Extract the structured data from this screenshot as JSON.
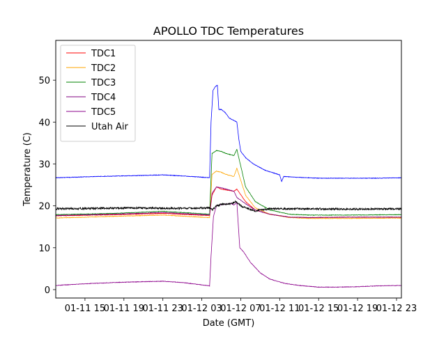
{
  "chart_data": {
    "type": "line",
    "title": "APOLLO TDC Temperatures",
    "xlabel": "Date (GMT)",
    "ylabel": "Temperature (C)",
    "x_unit": "hours since 01-11 12:00 GMT",
    "xlim": [
      0,
      35.5
    ],
    "ylim": [
      -2,
      59.5
    ],
    "xticks": [
      {
        "value": 3,
        "label": "01-11 15"
      },
      {
        "value": 7,
        "label": "01-11 19"
      },
      {
        "value": 11,
        "label": "01-11 23"
      },
      {
        "value": 15,
        "label": "01-12 03"
      },
      {
        "value": 19,
        "label": "01-12 07"
      },
      {
        "value": 23,
        "label": "01-12 11"
      },
      {
        "value": 27,
        "label": "01-12 15"
      },
      {
        "value": 31,
        "label": "01-12 19"
      },
      {
        "value": 35,
        "label": "01-12 23"
      }
    ],
    "yticks": [
      {
        "value": 0,
        "label": "0"
      },
      {
        "value": 10,
        "label": "10"
      },
      {
        "value": 20,
        "label": "20"
      },
      {
        "value": 30,
        "label": "30"
      },
      {
        "value": 40,
        "label": "40"
      },
      {
        "value": 50,
        "label": "50"
      }
    ],
    "legend_position": "top-left",
    "series": [
      {
        "name": "TDC1",
        "color": "#ff0000",
        "x": [
          0,
          6,
          11,
          15.8,
          16.05,
          16.5,
          17.0,
          17.5,
          18.3,
          18.6,
          19.5,
          20.5,
          22,
          24,
          26,
          30,
          35.5
        ],
        "y": [
          17.6,
          17.9,
          18.2,
          17.7,
          22.5,
          24.5,
          24.0,
          23.8,
          23.5,
          24.0,
          21.0,
          19.0,
          18.0,
          17.3,
          17.2,
          17.3,
          17.3
        ]
      },
      {
        "name": "TDC2",
        "color": "#ffa500",
        "x": [
          0,
          6,
          11,
          15.8,
          16.05,
          16.5,
          17.0,
          17.5,
          18.3,
          18.6,
          19.5,
          20.5,
          22,
          24,
          26,
          30,
          35.5
        ],
        "y": [
          17.1,
          17.5,
          17.8,
          17.2,
          27.5,
          28.3,
          28.0,
          27.5,
          27.0,
          29.0,
          22.5,
          19.5,
          18.0,
          17.2,
          17.0,
          17.0,
          17.1
        ]
      },
      {
        "name": "TDC3",
        "color": "#008000",
        "x": [
          0,
          6,
          11,
          15.8,
          16.05,
          16.5,
          17.0,
          17.5,
          18.3,
          18.6,
          19.5,
          20.5,
          22,
          24,
          26,
          30,
          35.5
        ],
        "y": [
          17.9,
          18.2,
          18.7,
          18.0,
          32.5,
          33.2,
          33.0,
          32.5,
          32.0,
          33.5,
          24.5,
          21.0,
          19.0,
          18.0,
          17.8,
          17.8,
          17.9
        ]
      },
      {
        "name": "TDC4",
        "color": "#800080",
        "x": [
          0,
          6,
          11,
          15.8,
          16.05,
          16.5,
          17.0,
          17.5,
          18.3,
          18.6,
          19.5,
          20.5,
          22,
          24,
          26,
          30,
          35.5
        ],
        "y": [
          17.7,
          18.0,
          18.4,
          17.8,
          23.0,
          24.5,
          24.3,
          24.0,
          23.5,
          22.0,
          20.5,
          19.0,
          18.0,
          17.3,
          17.2,
          17.3,
          17.3
        ]
      },
      {
        "name": "TDC5",
        "color": "#8b008b",
        "x": [
          0,
          3,
          6,
          9,
          11,
          13,
          15.8,
          15.95,
          16.2,
          16.5,
          17.0,
          17.5,
          18.0,
          18.3,
          18.6,
          18.9,
          19.3,
          20.0,
          21.0,
          22.0,
          23.5,
          25,
          27,
          29,
          31,
          33,
          35.5
        ],
        "y": [
          1.0,
          1.4,
          1.7,
          1.9,
          2.0,
          1.7,
          0.9,
          8.0,
          17.5,
          20.0,
          20.3,
          20.4,
          20.6,
          20.2,
          20.8,
          10.0,
          9.0,
          6.5,
          4.0,
          2.5,
          1.5,
          1.0,
          0.6,
          0.6,
          0.7,
          0.9,
          1.0
        ]
      },
      {
        "name": "Utah Air",
        "color": "#000000",
        "x": [
          0,
          4,
          8,
          12,
          15.8,
          16.1,
          16.5,
          17.0,
          17.5,
          18.0,
          18.5,
          19.0,
          19.5,
          20.5,
          22,
          26,
          30,
          35.5
        ],
        "y": [
          19.3,
          19.4,
          19.5,
          19.4,
          19.5,
          19.0,
          20.0,
          20.3,
          20.4,
          20.5,
          21.0,
          20.0,
          19.5,
          18.8,
          19.3,
          19.3,
          19.2,
          19.3
        ]
      },
      {
        "name": "",
        "color": "#0000ff",
        "x": [
          0,
          4,
          8,
          11,
          14,
          15.8,
          15.95,
          16.15,
          16.4,
          16.6,
          16.75,
          17.0,
          17.3,
          17.5,
          17.8,
          18.2,
          18.6,
          18.8,
          19.0,
          19.5,
          20.3,
          21.5,
          23.0,
          23.2,
          23.4,
          25,
          27,
          30,
          33,
          35.5
        ],
        "y": [
          26.7,
          27.0,
          27.2,
          27.4,
          27.0,
          26.7,
          40.0,
          47.5,
          48.5,
          48.8,
          43.0,
          43.0,
          42.5,
          42.0,
          41.0,
          40.5,
          40.0,
          36.0,
          33.0,
          31.5,
          30.0,
          28.5,
          27.4,
          25.8,
          27.0,
          26.8,
          26.6,
          26.6,
          26.6,
          26.7
        ]
      }
    ]
  }
}
